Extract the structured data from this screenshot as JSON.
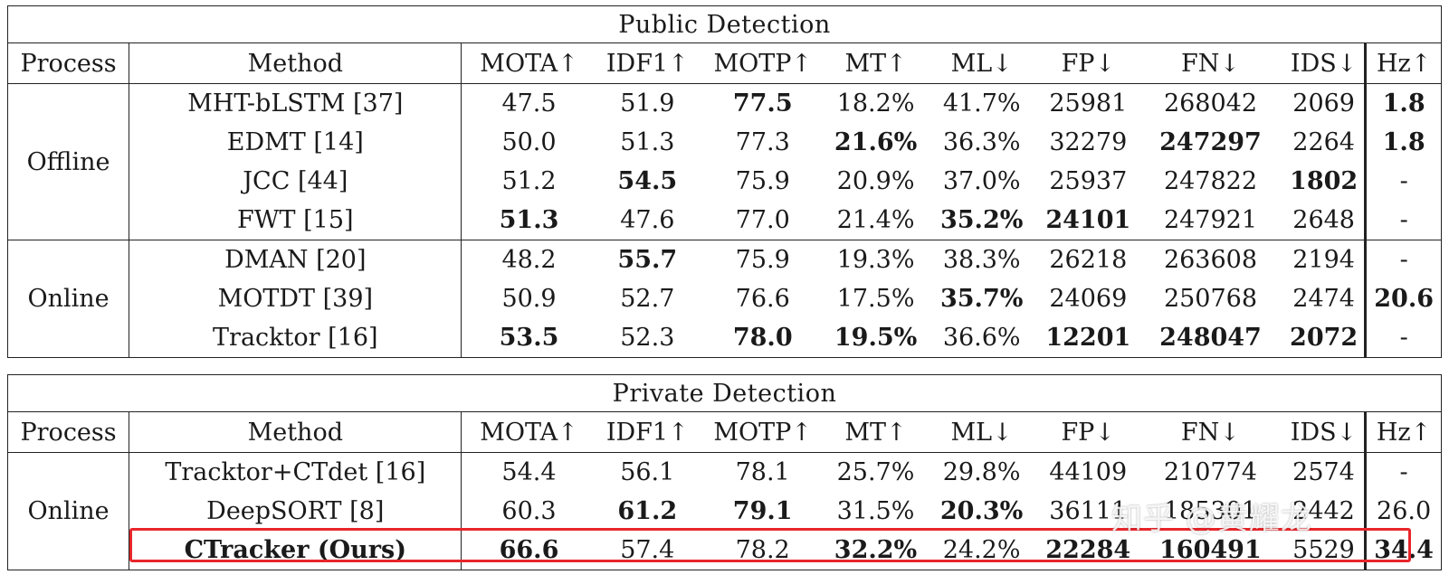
{
  "columns": [
    "Process",
    "Method",
    "MOTA↑",
    "IDF1↑",
    "MOTP↑",
    "MT↑",
    "ML↓",
    "FP↓",
    "FN↓",
    "IDS↓",
    "Hz↑"
  ],
  "public": {
    "title": "Public Detection",
    "groups": [
      {
        "process": "Offline",
        "rows": [
          {
            "method": "MHT-bLSTM [37]",
            "cells": [
              "47.5",
              "51.9",
              "77.5",
              "18.2%",
              "41.7%",
              "25981",
              "268042",
              "2069",
              "1.8"
            ],
            "bold": [
              2,
              8
            ]
          },
          {
            "method": "EDMT [14]",
            "cells": [
              "50.0",
              "51.3",
              "77.3",
              "21.6%",
              "36.3%",
              "32279",
              "247297",
              "2264",
              "1.8"
            ],
            "bold": [
              3,
              6,
              8
            ]
          },
          {
            "method": "JCC [44]",
            "cells": [
              "51.2",
              "54.5",
              "75.9",
              "20.9%",
              "37.0%",
              "25937",
              "247822",
              "1802",
              "-"
            ],
            "bold": [
              1,
              7
            ]
          },
          {
            "method": "FWT [15]",
            "cells": [
              "51.3",
              "47.6",
              "77.0",
              "21.4%",
              "35.2%",
              "24101",
              "247921",
              "2648",
              "-"
            ],
            "bold": [
              0,
              4,
              5
            ]
          }
        ]
      },
      {
        "process": "Online",
        "rows": [
          {
            "method": "DMAN [20]",
            "cells": [
              "48.2",
              "55.7",
              "75.9",
              "19.3%",
              "38.3%",
              "26218",
              "263608",
              "2194",
              "-"
            ],
            "bold": [
              1
            ]
          },
          {
            "method": "MOTDT [39]",
            "cells": [
              "50.9",
              "52.7",
              "76.6",
              "17.5%",
              "35.7%",
              "24069",
              "250768",
              "2474",
              "20.6"
            ],
            "bold": [
              4,
              8
            ]
          },
          {
            "method": "Tracktor [16]",
            "cells": [
              "53.5",
              "52.3",
              "78.0",
              "19.5%",
              "36.6%",
              "12201",
              "248047",
              "2072",
              "-"
            ],
            "bold": [
              0,
              2,
              3,
              5,
              6,
              7
            ]
          }
        ]
      }
    ]
  },
  "private": {
    "title": "Private Detection",
    "groups": [
      {
        "process": "Online",
        "rows": [
          {
            "method": "Tracktor+CTdet  [16]",
            "cells": [
              "54.4",
              "56.1",
              "78.1",
              "25.7%",
              "29.8%",
              "44109",
              "210774",
              "2574",
              "-"
            ],
            "bold": []
          },
          {
            "method": "DeepSORT [8]",
            "cells": [
              "60.3",
              "61.2",
              "79.1",
              "31.5%",
              "20.3%",
              "36111",
              "185301",
              "2442",
              "26.0"
            ],
            "bold": [
              1,
              2,
              4
            ]
          },
          {
            "method": "CTracker (Ours)",
            "cells": [
              "66.6",
              "57.4",
              "78.2",
              "32.2%",
              "24.2%",
              "22284",
              "160491",
              "5529",
              "34.4"
            ],
            "bold": [
              0,
              3,
              5,
              6,
              8
            ],
            "method_bold": true
          }
        ]
      }
    ]
  },
  "watermark": "知乎 @黄耀龙"
}
